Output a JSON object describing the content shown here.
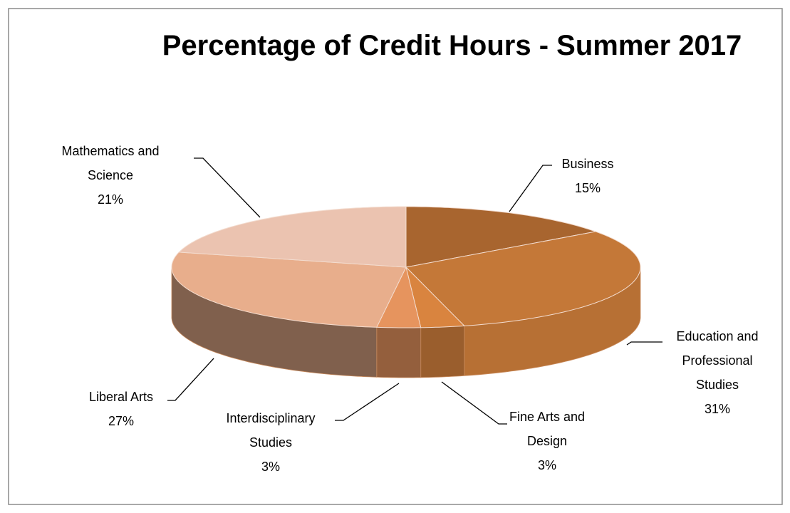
{
  "chart_data": {
    "type": "pie3d",
    "title": "Percentage of Credit Hours - Summer 2017",
    "categories": [
      "Business",
      "Education and Professional Studies",
      "Fine Arts and Design",
      "Interdisciplinary Studies",
      "Liberal Arts",
      "Mathematics and Science"
    ],
    "values": [
      15,
      31,
      3,
      3,
      27,
      21
    ],
    "value_labels": [
      "15%",
      "31%",
      "3%",
      "3%",
      "27%",
      "21%"
    ],
    "colors": [
      "#a8652f",
      "#c47838",
      "#d9843f",
      "#e6945e",
      "#e8ae8c",
      "#ebc3b0"
    ]
  }
}
